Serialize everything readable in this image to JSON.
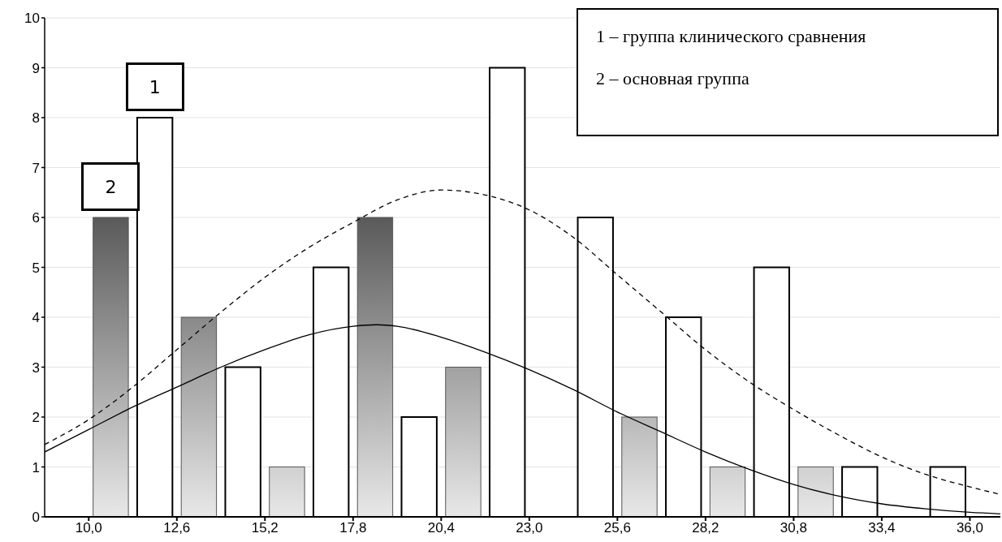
{
  "chart_data": {
    "type": "histogram",
    "bins": [
      10.0,
      12.6,
      15.2,
      17.8,
      20.4,
      23.0,
      25.6,
      28.2,
      30.8,
      33.4,
      36.0
    ],
    "series": [
      {
        "name": "2",
        "type": "histogram",
        "color": "#5a5a5a",
        "values": [
          6,
          4,
          1,
          6,
          3,
          0,
          2,
          1,
          1,
          0
        ]
      },
      {
        "name": "1",
        "type": "histogram",
        "color": "#ffffff",
        "values": [
          8,
          3,
          5,
          2,
          9,
          6,
          4,
          5,
          1,
          1
        ]
      },
      {
        "type": "line",
        "color": "#000000",
        "line_style": "solid",
        "x": [
          8.7,
          10.0,
          11.3,
          12.6,
          13.9,
          15.2,
          16.5,
          17.8,
          18.5,
          19.1,
          20.4,
          21.7,
          23.0,
          24.3,
          25.6,
          26.9,
          28.2,
          29.5,
          30.8,
          32.1,
          33.4,
          34.7,
          36.0,
          36.9
        ],
        "values": [
          1.3,
          1.75,
          2.2,
          2.6,
          3.0,
          3.35,
          3.65,
          3.82,
          3.85,
          3.82,
          3.6,
          3.3,
          2.95,
          2.55,
          2.1,
          1.7,
          1.3,
          0.95,
          0.65,
          0.42,
          0.26,
          0.16,
          0.09,
          0.06
        ]
      },
      {
        "type": "line",
        "color": "#000000",
        "line_style": "dashed",
        "x": [
          8.7,
          10.0,
          11.3,
          12.6,
          13.9,
          15.2,
          16.5,
          17.8,
          19.1,
          20.4,
          21.7,
          23.0,
          24.3,
          25.6,
          26.9,
          28.2,
          29.5,
          30.8,
          32.1,
          33.4,
          34.7,
          36.0,
          36.9
        ],
        "values": [
          1.45,
          1.95,
          2.6,
          3.35,
          4.1,
          4.8,
          5.4,
          5.9,
          6.35,
          6.55,
          6.45,
          6.15,
          5.6,
          4.85,
          4.1,
          3.35,
          2.7,
          2.15,
          1.65,
          1.2,
          0.85,
          0.6,
          0.45
        ]
      }
    ],
    "xlim": [
      8.7,
      36.9
    ],
    "xticks": [
      {
        "value": 10.0,
        "label": "10,0"
      },
      {
        "value": 12.6,
        "label": "12,6"
      },
      {
        "value": 15.2,
        "label": "15,2"
      },
      {
        "value": 17.8,
        "label": "17,8"
      },
      {
        "value": 20.4,
        "label": "20,4"
      },
      {
        "value": 23.0,
        "label": "23,0"
      },
      {
        "value": 25.6,
        "label": "25,6"
      },
      {
        "value": 28.2,
        "label": "28,2"
      },
      {
        "value": 30.8,
        "label": "30,8"
      },
      {
        "value": 33.4,
        "label": "33,4"
      },
      {
        "value": 36.0,
        "label": "36,0"
      }
    ],
    "ylim": [
      0,
      10
    ],
    "yticks": [
      0,
      1,
      2,
      3,
      4,
      5,
      6,
      7,
      8,
      9,
      10
    ],
    "grid": "y",
    "annotations": [
      "1 – группа клинического сравнения",
      "2 – основная группа"
    ]
  }
}
